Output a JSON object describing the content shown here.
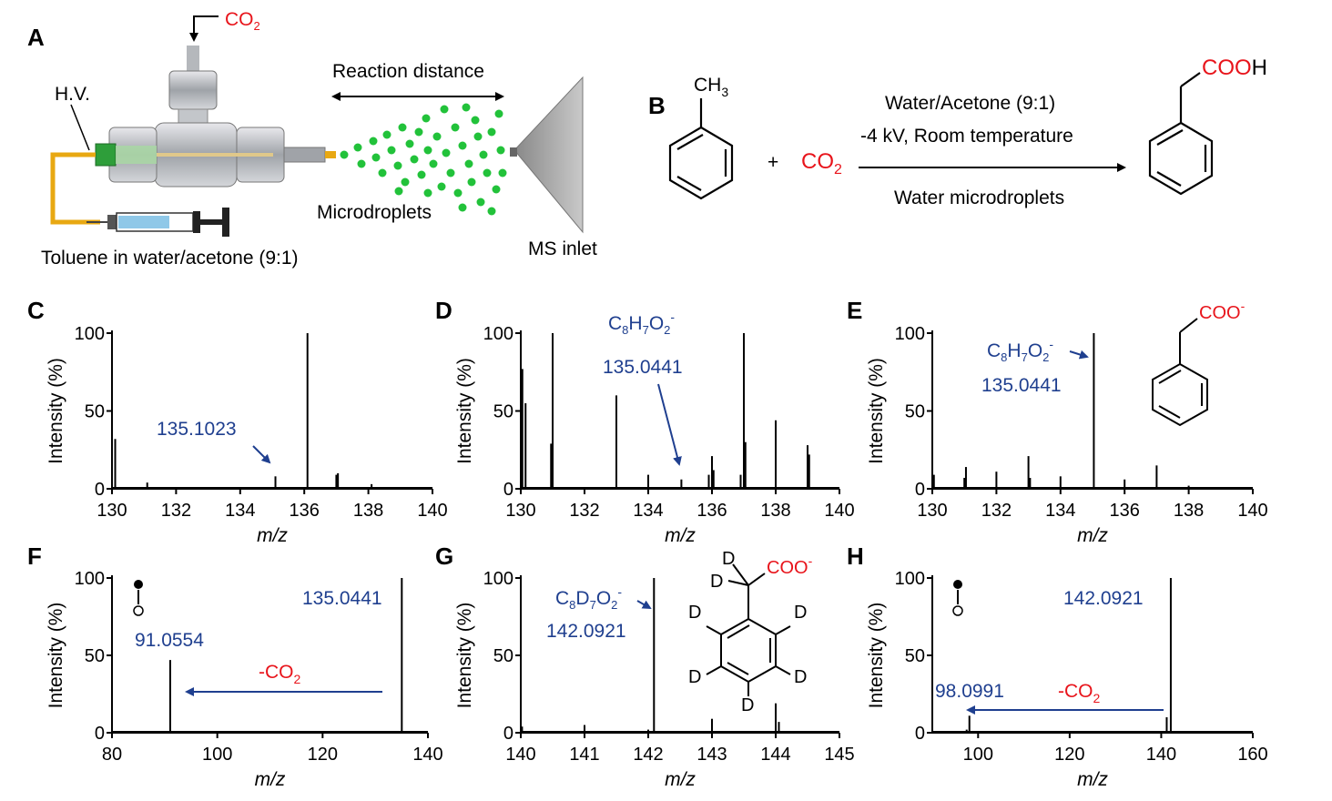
{
  "panel_labels": [
    "A",
    "B",
    "C",
    "D",
    "E",
    "F",
    "G",
    "H"
  ],
  "panelA": {
    "co2": "CO",
    "co2_sub": "2",
    "hv": "H.V.",
    "reaction_distance": "Reaction distance",
    "microdroplets": "Microdroplets",
    "ms_inlet": "MS inlet",
    "toluene": "Toluene in water/acetone (9:1)"
  },
  "panelB": {
    "ch3": "CH",
    "ch3_sub": "3",
    "plus": "+",
    "co2": "CO",
    "co2_sub": "2",
    "cond1": "Water/Acetone (9:1)",
    "cond2": "-4 kV, Room temperature",
    "cond3": "Water microdroplets",
    "product": "COOH",
    "product_coo": "COO",
    "product_h": "H"
  },
  "y_label": "Intensity (%)",
  "x_label": "m/z",
  "annotations": {
    "C_peak": "135.1023",
    "D_formula": "C8H7O2-",
    "D_peak": "135.0441",
    "E_formula": "C8H7O2-",
    "E_peak": "135.0441",
    "E_struct": "COO-",
    "F_parent": "135.0441",
    "F_frag": "91.0554",
    "F_loss": "-CO2",
    "G_formula": "C8D7O2-",
    "G_peak": "142.0921",
    "G_struct": "COO-",
    "G_d": "D",
    "H_parent": "142.0921",
    "H_frag": "98.0991",
    "H_loss": "-CO2"
  },
  "chart_data": [
    {
      "panel": "C",
      "type": "bar",
      "xlim": [
        130,
        140
      ],
      "ylim": [
        0,
        100
      ],
      "xticks": [
        130,
        132,
        134,
        136,
        138,
        140
      ],
      "yticks": [
        0,
        50,
        100
      ],
      "xlabel": "m/z",
      "ylabel": "Intensity (%)",
      "peaks": [
        [
          130.1,
          32
        ],
        [
          131.1,
          4
        ],
        [
          134.0,
          1
        ],
        [
          135.1,
          8
        ],
        [
          136.1,
          100
        ],
        [
          137.0,
          9
        ],
        [
          137.05,
          10
        ],
        [
          138.1,
          3
        ],
        [
          139.0,
          1
        ]
      ]
    },
    {
      "panel": "D",
      "type": "bar",
      "xlim": [
        130,
        140
      ],
      "ylim": [
        0,
        100
      ],
      "xticks": [
        130,
        132,
        134,
        136,
        138,
        140
      ],
      "yticks": [
        0,
        50,
        100
      ],
      "xlabel": "m/z",
      "ylabel": "Intensity (%)",
      "peaks": [
        [
          130.05,
          77
        ],
        [
          130.15,
          55
        ],
        [
          131.0,
          100
        ],
        [
          130.95,
          29
        ],
        [
          133.0,
          60
        ],
        [
          134.0,
          9
        ],
        [
          135.04,
          6
        ],
        [
          135.9,
          9
        ],
        [
          136.0,
          21
        ],
        [
          136.05,
          12
        ],
        [
          136.9,
          9
        ],
        [
          137.0,
          100
        ],
        [
          137.05,
          30
        ],
        [
          138.0,
          44
        ],
        [
          139.0,
          28
        ],
        [
          139.05,
          22
        ]
      ]
    },
    {
      "panel": "E",
      "type": "bar",
      "xlim": [
        130,
        140
      ],
      "ylim": [
        0,
        100
      ],
      "xticks": [
        130,
        132,
        134,
        136,
        138,
        140
      ],
      "yticks": [
        0,
        50,
        100
      ],
      "xlabel": "m/z",
      "ylabel": "Intensity (%)",
      "peaks": [
        [
          130.05,
          9
        ],
        [
          131.05,
          14
        ],
        [
          131.0,
          7
        ],
        [
          132.0,
          11
        ],
        [
          133.0,
          21
        ],
        [
          133.05,
          7
        ],
        [
          134.0,
          8
        ],
        [
          135.04,
          100
        ],
        [
          136.0,
          6
        ],
        [
          137.0,
          15
        ],
        [
          138.0,
          2
        ],
        [
          139.0,
          1
        ]
      ]
    },
    {
      "panel": "F",
      "type": "bar",
      "xlim": [
        80,
        140
      ],
      "ylim": [
        0,
        100
      ],
      "xticks": [
        80,
        100,
        120,
        140
      ],
      "yticks": [
        0,
        50,
        100
      ],
      "xlabel": "m/z",
      "ylabel": "Intensity (%)",
      "peaks": [
        [
          91.06,
          47
        ],
        [
          135.04,
          100
        ]
      ]
    },
    {
      "panel": "G",
      "type": "bar",
      "xlim": [
        140,
        145
      ],
      "ylim": [
        0,
        100
      ],
      "xticks": [
        140,
        141,
        142,
        143,
        144,
        145
      ],
      "yticks": [
        0,
        50,
        100
      ],
      "xlabel": "m/z",
      "ylabel": "Intensity (%)",
      "peaks": [
        [
          140.02,
          4
        ],
        [
          141.0,
          5
        ],
        [
          142.09,
          100
        ],
        [
          142.0,
          2
        ],
        [
          143.0,
          9
        ],
        [
          144.0,
          19
        ],
        [
          144.05,
          7
        ]
      ]
    },
    {
      "panel": "H",
      "type": "bar",
      "xlim": [
        90,
        160
      ],
      "ylim": [
        0,
        100
      ],
      "xticks": [
        100,
        120,
        140,
        160
      ],
      "yticks": [
        0,
        50,
        100
      ],
      "xlabel": "m/z",
      "ylabel": "Intensity (%)",
      "peaks": [
        [
          97.5,
          2
        ],
        [
          98.1,
          11
        ],
        [
          112.0,
          1
        ],
        [
          141.2,
          10
        ],
        [
          142.09,
          100
        ]
      ]
    }
  ],
  "colors": {
    "blue": "#1f3f8f",
    "red": "#e8141b",
    "green": "#22c23a",
    "orange": "#e8a812",
    "gray": "#9a9a9a"
  }
}
